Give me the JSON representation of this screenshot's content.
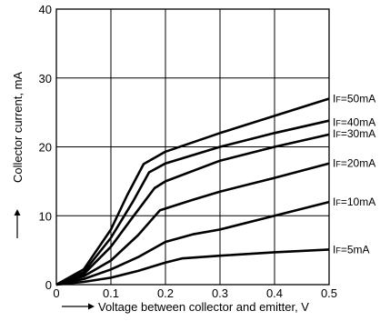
{
  "chart_data": {
    "type": "line",
    "title": "",
    "xlabel": "Voltage between collector and emitter, V",
    "ylabel": "Collector current, mA",
    "xlim": [
      0,
      0.5
    ],
    "ylim": [
      0,
      40
    ],
    "xticks": [
      0,
      0.1,
      0.2,
      0.3,
      0.4,
      0.5
    ],
    "yticks": [
      0,
      10,
      20,
      30,
      40
    ],
    "xtick_labels": [
      "0",
      "0.1",
      "0.2",
      "0.3",
      "0.4",
      "0.5"
    ],
    "ytick_labels": [
      "0",
      "10",
      "20",
      "30",
      "40"
    ],
    "grid": true,
    "legend": "inline labels at right end of each curve",
    "series": [
      {
        "name": "IF=50mA",
        "label_prefix": "I",
        "label_sub": "F",
        "label_suffix": "=50mA",
        "points": [
          [
            0,
            0
          ],
          [
            0.05,
            2.2
          ],
          [
            0.1,
            8
          ],
          [
            0.13,
            13
          ],
          [
            0.16,
            17.5
          ],
          [
            0.2,
            19.3
          ],
          [
            0.3,
            22
          ],
          [
            0.4,
            24.5
          ],
          [
            0.5,
            27
          ]
        ]
      },
      {
        "name": "IF=40mA",
        "label_prefix": "I",
        "label_sub": "F",
        "label_suffix": "=40mA",
        "points": [
          [
            0,
            0
          ],
          [
            0.05,
            1.8
          ],
          [
            0.1,
            6.8
          ],
          [
            0.14,
            12
          ],
          [
            0.17,
            16.3
          ],
          [
            0.2,
            17.6
          ],
          [
            0.3,
            20
          ],
          [
            0.4,
            22
          ],
          [
            0.5,
            23.8
          ]
        ]
      },
      {
        "name": "IF=30mA",
        "label_prefix": "I",
        "label_sub": "F",
        "label_suffix": "=30mA",
        "points": [
          [
            0,
            0
          ],
          [
            0.05,
            1.5
          ],
          [
            0.1,
            5.5
          ],
          [
            0.14,
            9.8
          ],
          [
            0.18,
            14
          ],
          [
            0.2,
            15
          ],
          [
            0.3,
            18
          ],
          [
            0.4,
            20
          ],
          [
            0.5,
            21.8
          ]
        ]
      },
      {
        "name": "IF=20mA",
        "label_prefix": "I",
        "label_sub": "F",
        "label_suffix": "=20mA",
        "points": [
          [
            0,
            0
          ],
          [
            0.05,
            1.2
          ],
          [
            0.1,
            3.5
          ],
          [
            0.15,
            7.2
          ],
          [
            0.19,
            10.8
          ],
          [
            0.25,
            12.3
          ],
          [
            0.3,
            13.5
          ],
          [
            0.4,
            15.5
          ],
          [
            0.5,
            17.6
          ]
        ]
      },
      {
        "name": "IF=10mA",
        "label_prefix": "I",
        "label_sub": "F",
        "label_suffix": "=10mA",
        "points": [
          [
            0,
            0
          ],
          [
            0.05,
            0.8
          ],
          [
            0.1,
            2.2
          ],
          [
            0.15,
            4
          ],
          [
            0.2,
            6.2
          ],
          [
            0.25,
            7.3
          ],
          [
            0.3,
            8
          ],
          [
            0.4,
            10
          ],
          [
            0.5,
            12
          ]
        ]
      },
      {
        "name": "IF=5mA",
        "label_prefix": "I",
        "label_sub": "F",
        "label_suffix": "=5mA",
        "points": [
          [
            0,
            0
          ],
          [
            0.05,
            0.4
          ],
          [
            0.1,
            1
          ],
          [
            0.15,
            2
          ],
          [
            0.2,
            3.2
          ],
          [
            0.23,
            3.8
          ],
          [
            0.3,
            4.2
          ],
          [
            0.4,
            4.7
          ],
          [
            0.5,
            5.1
          ]
        ]
      }
    ],
    "colors": {
      "line": "#000000",
      "grid": "#000000",
      "background": "#ffffff"
    }
  }
}
